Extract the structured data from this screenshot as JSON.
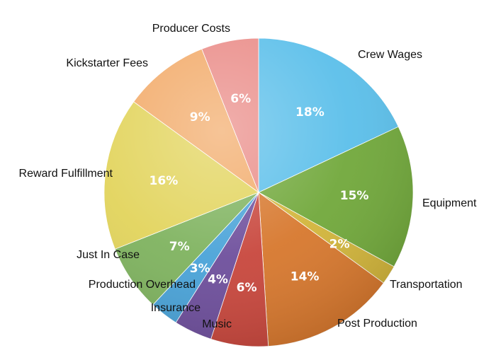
{
  "chart_data": {
    "type": "pie",
    "title": "",
    "slices": [
      {
        "label": "Crew Wages",
        "value": 18,
        "value_label": "18%",
        "color": "#5bbfea"
      },
      {
        "label": "Equipment",
        "value": 15,
        "value_label": "15%",
        "color": "#71a83b"
      },
      {
        "label": "Transportation",
        "value": 2,
        "value_label": "2%",
        "color": "#d2b53b"
      },
      {
        "label": "Post Production",
        "value": 14,
        "value_label": "14%",
        "color": "#d7782e"
      },
      {
        "label": "Music",
        "value": 6,
        "value_label": "6%",
        "color": "#c8473d"
      },
      {
        "label": "Insurance",
        "value": 4,
        "value_label": "4%",
        "color": "#6e4f9c"
      },
      {
        "label": "Production Overhead",
        "value": 3,
        "value_label": "3%",
        "color": "#4aa3d8"
      },
      {
        "label": "Just In Case",
        "value": 7,
        "value_label": "7%",
        "color": "#7fb35f"
      },
      {
        "label": "Reward Fulfillment",
        "value": 16,
        "value_label": "16%",
        "color": "#e2d45c"
      },
      {
        "label": "Kickstarter Fees",
        "value": 9,
        "value_label": "9%",
        "color": "#f2ab6a"
      },
      {
        "label": "Producer Costs",
        "value": 6,
        "value_label": "6%",
        "color": "#ea8c88"
      }
    ],
    "legend": "none",
    "start": "12 o'clock",
    "direction": "clockwise"
  }
}
